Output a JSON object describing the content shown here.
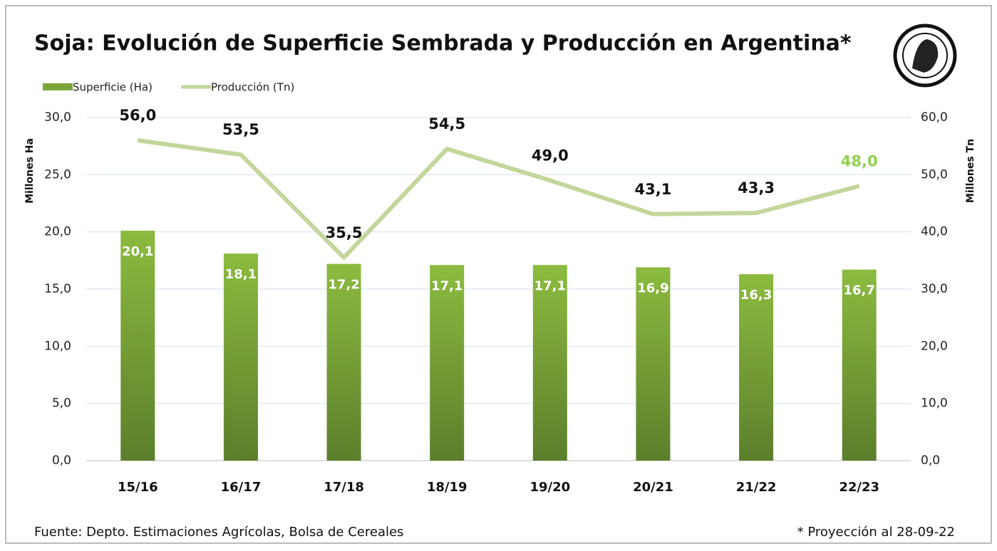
{
  "chart_data": {
    "type": "bar-line",
    "title": "Soja: Evolución de Superficie Sembrada y Producción en Argentina*",
    "categories": [
      "15/16",
      "16/17",
      "17/18",
      "18/19",
      "19/20",
      "20/21",
      "21/22",
      "22/23"
    ],
    "series": [
      {
        "name": "Superficie (Ha)",
        "type": "bar",
        "color": "#7aa63a",
        "values": [
          20.1,
          18.1,
          17.2,
          17.1,
          17.1,
          16.9,
          16.3,
          16.7
        ],
        "value_labels": [
          "20,1",
          "18,1",
          "17,2",
          "17,1",
          "17,1",
          "16,9",
          "16,3",
          "16,7"
        ]
      },
      {
        "name": "Producción (Tn)",
        "type": "line",
        "axis": "y2",
        "color": "#c3d69b",
        "last_label_color": "#92d050",
        "values": [
          56.0,
          53.5,
          35.5,
          54.5,
          49.0,
          43.1,
          43.3,
          48.0
        ],
        "value_labels": [
          "56,0",
          "53,5",
          "35,5",
          "54,5",
          "49,0",
          "43,1",
          "43,3",
          "48,0"
        ]
      }
    ],
    "ylabel": "Millones Ha",
    "y2label": "Millones Tn",
    "ylim": [
      0,
      30
    ],
    "yticks": [
      {
        "value": 0,
        "label": "0,0"
      },
      {
        "value": 5,
        "label": "5,0"
      },
      {
        "value": 10,
        "label": "10,0"
      },
      {
        "value": 15,
        "label": "15,0"
      },
      {
        "value": 20,
        "label": "20,0"
      },
      {
        "value": 25,
        "label": "25,0"
      },
      {
        "value": 30,
        "label": "30,0"
      }
    ],
    "y2lim": [
      0,
      60
    ],
    "y2ticks": [
      {
        "value": 0,
        "label": "0,0"
      },
      {
        "value": 10,
        "label": "10,0"
      },
      {
        "value": 20,
        "label": "20,0"
      },
      {
        "value": 30,
        "label": "30,0"
      },
      {
        "value": 40,
        "label": "40,0"
      },
      {
        "value": 50,
        "label": "50,0"
      },
      {
        "value": 60,
        "label": "60,0"
      }
    ],
    "grid": true,
    "legend": "top-left",
    "source": "Fuente: Depto. Estimaciones Agrícolas, Bolsa de Cereales",
    "note": "* Proyección al 28-09-22"
  }
}
